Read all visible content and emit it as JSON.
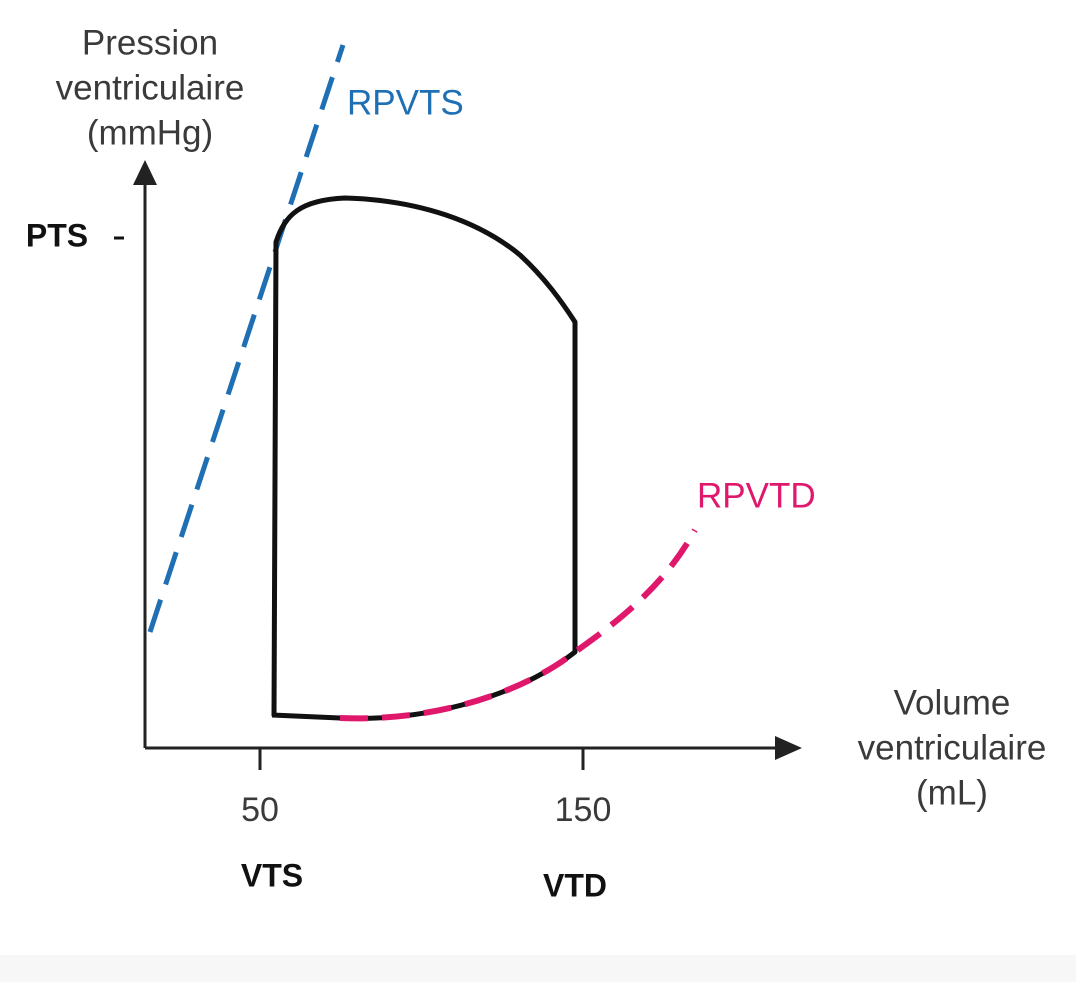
{
  "y_axis_label": [
    "Pression",
    "ventriculaire",
    "(mmHg)"
  ],
  "x_axis_label": [
    "Volume",
    "ventriculaire",
    "(mL)"
  ],
  "curves": {
    "systolic": "RPVTS",
    "diastolic": "RPVTD"
  },
  "y_marker": "PTS",
  "x_ticks": [
    {
      "label": "50",
      "name": "VTS"
    },
    {
      "label": "150",
      "name": "VTD"
    }
  ]
}
